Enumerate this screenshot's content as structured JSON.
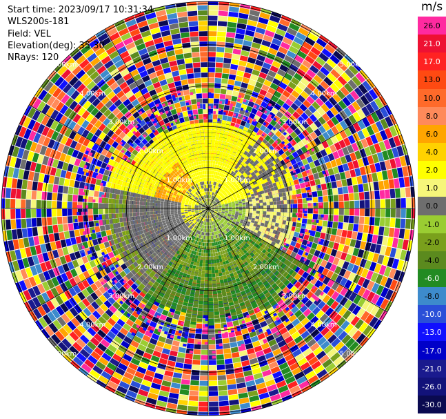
{
  "header": {
    "start_time": "Start time: 2023/09/17 10:31:34",
    "instrument": "WLS200s-181",
    "field": "Field: VEL",
    "elevation": "Elevation(deg): 35.30",
    "nrays": "NRays: 120"
  },
  "colorbar": {
    "unit": "m/s",
    "levels": [
      {
        "label": "26.0",
        "color": "#ff2aa0"
      },
      {
        "label": "21.0",
        "color": "#ee1133"
      },
      {
        "label": "17.0",
        "color": "#ff2222"
      },
      {
        "label": "13.0",
        "color": "#ff4a12"
      },
      {
        "label": "10.0",
        "color": "#ff6a2a"
      },
      {
        "label": "8.0",
        "color": "#ff8a5a"
      },
      {
        "label": "6.0",
        "color": "#ffa500"
      },
      {
        "label": "4.0",
        "color": "#ffd200"
      },
      {
        "label": "2.0",
        "color": "#ffff00"
      },
      {
        "label": "1.0",
        "color": "#f6f67a"
      },
      {
        "label": "0.0",
        "color": "#6e6e6e"
      },
      {
        "label": "-1.0",
        "color": "#9acd32"
      },
      {
        "label": "-2.0",
        "color": "#7aa01c"
      },
      {
        "label": "-4.0",
        "color": "#5b8a1e"
      },
      {
        "label": "-6.0",
        "color": "#228b22"
      },
      {
        "label": "-8.0",
        "color": "#3d8bcc"
      },
      {
        "label": "-10.0",
        "color": "#2a4fd8"
      },
      {
        "label": "-13.0",
        "color": "#1010ff"
      },
      {
        "label": "-17.0",
        "color": "#0000c8"
      },
      {
        "label": "-21.0",
        "color": "#1a1a8e"
      },
      {
        "label": "-26.0",
        "color": "#12127a"
      },
      {
        "label": "-30.0",
        "color": "#0a0a50"
      }
    ]
  },
  "range_rings": {
    "labels": [
      "1.00km",
      "2.00km",
      "3.00km",
      "4.00km",
      "5.00km"
    ]
  }
}
